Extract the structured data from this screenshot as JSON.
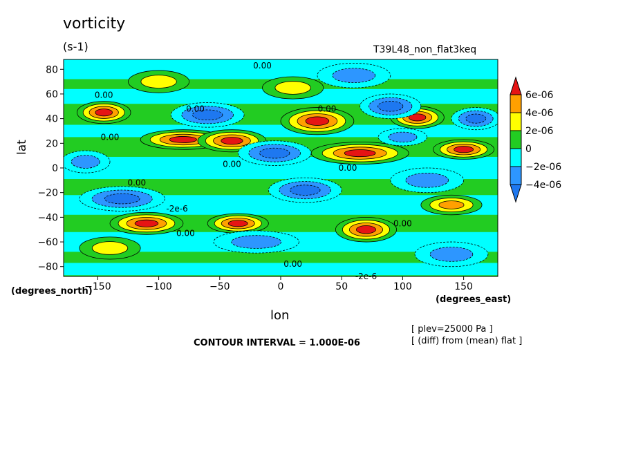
{
  "title": "vorticity",
  "units": "(s-1)",
  "run_id": "T39L48_non_flat3keq",
  "notes": [
    "[ plev=25000 Pa ]",
    "[ (diff) from (mean) flat ]"
  ],
  "contour_interval": "CONTOUR INTERVAL = 1.000E-06",
  "colors": {
    "lt_m4": "#1e78f0",
    "m4_m2": "#2d96ff",
    "m2_0": "#00ffff",
    "0_2": "#22cc22",
    "2_4": "#ffff00",
    "4_6": "#ffa000",
    "gt_6": "#e61414"
  },
  "chart_data": {
    "type": "heatmap",
    "title": "vorticity",
    "subtitle": "(s-1)",
    "xlabel": "lon",
    "xlabel_units": "(degrees_east)",
    "ylabel": "lat",
    "ylabel_units": "(degrees_north)",
    "xlim": [
      -178,
      178
    ],
    "ylim": [
      -88,
      88
    ],
    "x_ticks": [
      -150,
      -100,
      -50,
      0,
      50,
      100,
      150
    ],
    "x_tick_labels": [
      "−150",
      "−100",
      "−50",
      "0",
      "50",
      "100",
      "150"
    ],
    "y_ticks": [
      80,
      60,
      40,
      20,
      0,
      -20,
      -40,
      -60,
      -80
    ],
    "y_tick_labels": [
      "80",
      "60",
      "40",
      "20",
      "0",
      "−20",
      "−40",
      "−60",
      "−80"
    ],
    "colorbar": {
      "labels": [
        "6e-06",
        "4e-06",
        "2e-06",
        "0",
        "−2e-06",
        "−4e-06"
      ],
      "levels": [
        6e-06,
        4e-06,
        2e-06,
        0,
        -2e-06,
        -4e-06
      ],
      "extend": "both"
    },
    "contour_labels": [
      {
        "text": "0.00",
        "lon": -15,
        "lat": 83
      },
      {
        "text": "0.00",
        "lon": -145,
        "lat": 59
      },
      {
        "text": "0.00",
        "lon": -70,
        "lat": 48
      },
      {
        "text": "0.00",
        "lon": 38,
        "lat": 48
      },
      {
        "text": "0.00",
        "lon": -140,
        "lat": 25
      },
      {
        "text": "0.00",
        "lon": -40,
        "lat": 3
      },
      {
        "text": "0.00",
        "lon": 55,
        "lat": 0
      },
      {
        "text": "0.00",
        "lon": -118,
        "lat": -12
      },
      {
        "text": "0.00",
        "lon": -78,
        "lat": -53
      },
      {
        "text": "0.00",
        "lon": 10,
        "lat": -78
      },
      {
        "text": "0.00",
        "lon": 100,
        "lat": -45
      },
      {
        "text": "-2e-6",
        "lon": 70,
        "lat": -88
      },
      {
        "text": "-2e-6",
        "lon": -85,
        "lat": -33
      }
    ],
    "anomalies": [
      {
        "lon": -145,
        "lat": 45,
        "value": 7e-06,
        "rx": 22,
        "ry": 9
      },
      {
        "lon": -60,
        "lat": 43,
        "value": -5e-06,
        "rx": 30,
        "ry": 10
      },
      {
        "lon": -80,
        "lat": 23,
        "value": 7e-06,
        "rx": 35,
        "ry": 8
      },
      {
        "lon": -40,
        "lat": 22,
        "value": 6.5e-06,
        "rx": 28,
        "ry": 9
      },
      {
        "lon": -5,
        "lat": 12,
        "value": -5e-06,
        "rx": 30,
        "ry": 10
      },
      {
        "lon": 30,
        "lat": 38,
        "value": 7e-06,
        "rx": 30,
        "ry": 11
      },
      {
        "lon": 65,
        "lat": 12,
        "value": 7e-06,
        "rx": 40,
        "ry": 9
      },
      {
        "lon": 112,
        "lat": 41,
        "value": 6.5e-06,
        "rx": 22,
        "ry": 9
      },
      {
        "lon": 150,
        "lat": 15,
        "value": 7e-06,
        "rx": 25,
        "ry": 8
      },
      {
        "lon": 90,
        "lat": 50,
        "value": -4.5e-06,
        "rx": 25,
        "ry": 10
      },
      {
        "lon": 160,
        "lat": 40,
        "value": -4.5e-06,
        "rx": 20,
        "ry": 9
      },
      {
        "lon": 20,
        "lat": -18,
        "value": -6e-06,
        "rx": 30,
        "ry": 10
      },
      {
        "lon": -110,
        "lat": -45,
        "value": 7e-06,
        "rx": 30,
        "ry": 9
      },
      {
        "lon": -35,
        "lat": -45,
        "value": 6.5e-06,
        "rx": 25,
        "ry": 8
      },
      {
        "lon": 70,
        "lat": -50,
        "value": 7e-06,
        "rx": 25,
        "ry": 10
      },
      {
        "lon": 140,
        "lat": -30,
        "value": 4.5e-06,
        "rx": 25,
        "ry": 8
      },
      {
        "lon": -130,
        "lat": -25,
        "value": -5e-06,
        "rx": 35,
        "ry": 10
      },
      {
        "lon": -20,
        "lat": -60,
        "value": -4e-06,
        "rx": 35,
        "ry": 9
      },
      {
        "lon": 140,
        "lat": -70,
        "value": -3.5e-06,
        "rx": 30,
        "ry": 10
      },
      {
        "lon": -100,
        "lat": 70,
        "value": 3e-06,
        "rx": 25,
        "ry": 9
      },
      {
        "lon": 60,
        "lat": 75,
        "value": -3e-06,
        "rx": 30,
        "ry": 10
      },
      {
        "lon": 120,
        "lat": -10,
        "value": -3.5e-06,
        "rx": 30,
        "ry": 10
      },
      {
        "lon": -160,
        "lat": 5,
        "value": -3e-06,
        "rx": 20,
        "ry": 9
      },
      {
        "lon": 100,
        "lat": 25,
        "value": -3e-06,
        "rx": 20,
        "ry": 7
      },
      {
        "lon": -140,
        "lat": -65,
        "value": 3.5e-06,
        "rx": 25,
        "ry": 9
      },
      {
        "lon": 10,
        "lat": 65,
        "value": 3e-06,
        "rx": 25,
        "ry": 9
      }
    ]
  }
}
